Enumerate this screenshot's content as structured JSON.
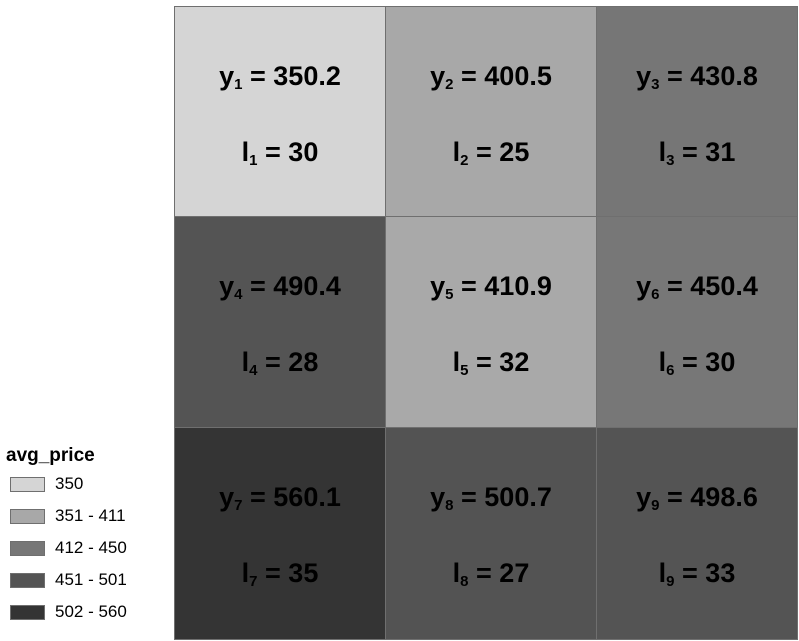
{
  "map": {
    "cells": [
      {
        "y_name": "y",
        "y_sub": "1",
        "y_value": "350.2",
        "l_name": "l",
        "l_sub": "1",
        "l_value": "30",
        "fill": "#d5d5d5"
      },
      {
        "y_name": "y",
        "y_sub": "2",
        "y_value": "400.5",
        "l_name": "l",
        "l_sub": "2",
        "l_value": "25",
        "fill": "#a8a8a8"
      },
      {
        "y_name": "y",
        "y_sub": "3",
        "y_value": "430.8",
        "l_name": "l",
        "l_sub": "3",
        "l_value": "31",
        "fill": "#767676"
      },
      {
        "y_name": "y",
        "y_sub": "4",
        "y_value": "490.4",
        "l_name": "l",
        "l_sub": "4",
        "l_value": "28",
        "fill": "#545454"
      },
      {
        "y_name": "y",
        "y_sub": "5",
        "y_value": "410.9",
        "l_name": "l",
        "l_sub": "5",
        "l_value": "32",
        "fill": "#a9a9a9"
      },
      {
        "y_name": "y",
        "y_sub": "6",
        "y_value": "450.4",
        "l_name": "l",
        "l_sub": "6",
        "l_value": "30",
        "fill": "#777777"
      },
      {
        "y_name": "y",
        "y_sub": "7",
        "y_value": "560.1",
        "l_name": "l",
        "l_sub": "7",
        "l_value": "35",
        "fill": "#343434"
      },
      {
        "y_name": "y",
        "y_sub": "8",
        "y_value": "500.7",
        "l_name": "l",
        "l_sub": "8",
        "l_value": "27",
        "fill": "#535353"
      },
      {
        "y_name": "y",
        "y_sub": "9",
        "y_value": "498.6",
        "l_name": "l",
        "l_sub": "9",
        "l_value": "33",
        "fill": "#545454"
      }
    ]
  },
  "legend": {
    "title": "avg_price",
    "items": [
      {
        "label": "350",
        "color": "#d5d5d5"
      },
      {
        "label": "351 - 411",
        "color": "#a8a8a8"
      },
      {
        "label": "412 - 450",
        "color": "#777777"
      },
      {
        "label": "451 - 501",
        "color": "#545454"
      },
      {
        "label": "502 - 560",
        "color": "#343434"
      }
    ]
  }
}
